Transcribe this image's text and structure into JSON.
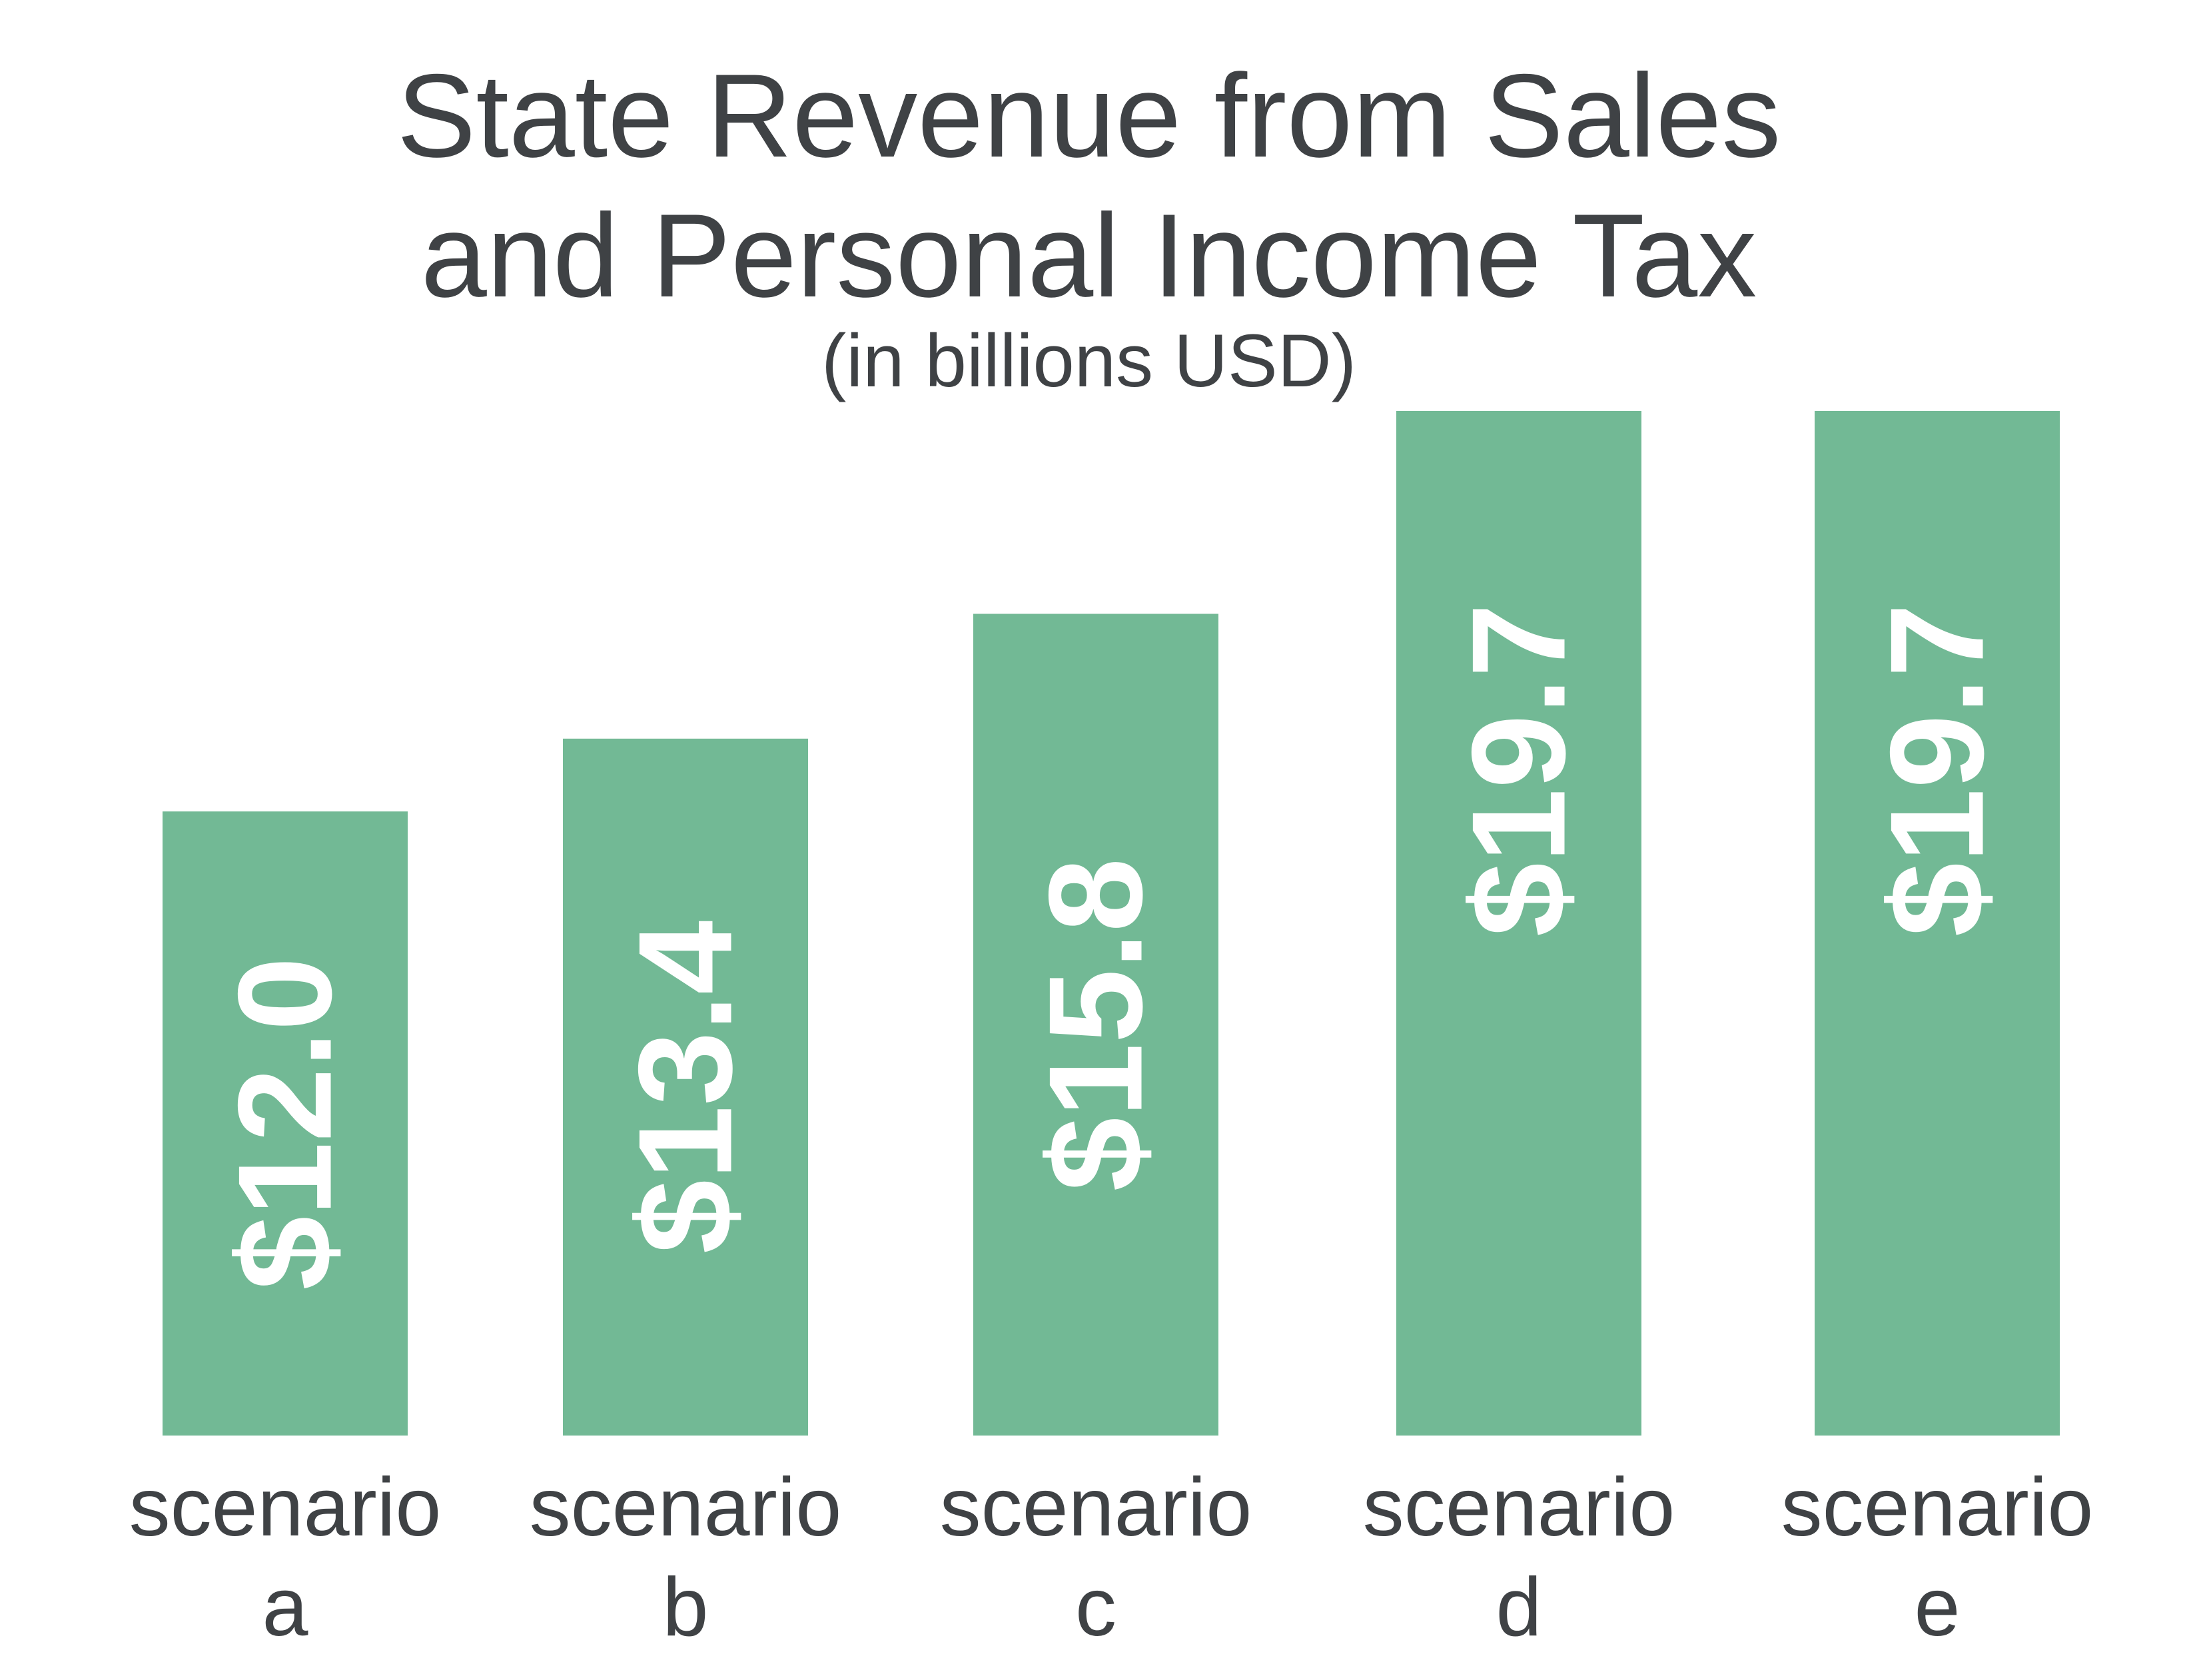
{
  "chart_data": {
    "type": "bar",
    "title_lines": [
      "State Revenue from Sales",
      "and Personal Income Tax"
    ],
    "subtitle": "(in billions USD)",
    "categories": [
      [
        "scenario",
        "a"
      ],
      [
        "scenario",
        "b"
      ],
      [
        "scenario",
        "c"
      ],
      [
        "scenario",
        "d"
      ],
      [
        "scenario",
        "e"
      ]
    ],
    "values": [
      12.0,
      13.4,
      15.8,
      19.7,
      19.7
    ],
    "value_labels": [
      "$12.0",
      "$13.4",
      "$15.8",
      "$19.7",
      "$19.7"
    ],
    "xlabel": "",
    "ylabel": "",
    "ylim": [
      0,
      19.7
    ],
    "grid": false,
    "legend": "none",
    "bar_color": "#72b995",
    "text_color": "#3f4245",
    "label_color": "#ffffff"
  }
}
